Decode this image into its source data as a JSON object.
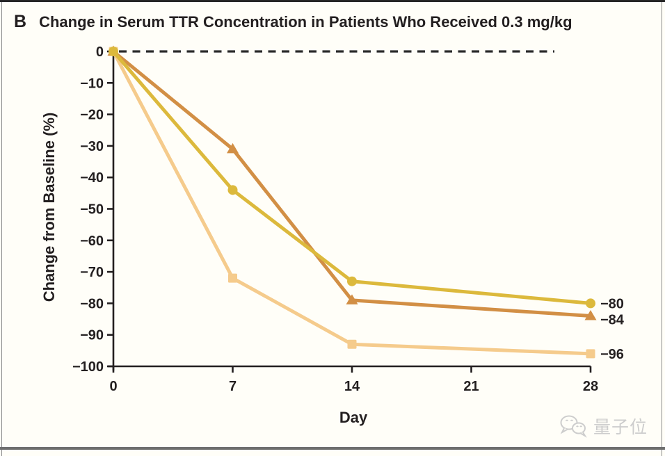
{
  "panel": {
    "label": "B",
    "title": "Change in Serum TTR Concentration in Patients Who Received 0.3 mg/kg"
  },
  "chart_data": {
    "type": "line",
    "title": "Change in Serum TTR Concentration in Patients Who Received 0.3 mg/kg",
    "xlabel": "Day",
    "ylabel": "Change from Baseline (%)",
    "xlim": [
      0,
      28
    ],
    "ylim": [
      -100,
      0
    ],
    "x_ticks": [
      0,
      7,
      14,
      21,
      28
    ],
    "x_tick_labels": [
      "0",
      "7",
      "14",
      "21",
      "28"
    ],
    "y_ticks": [
      0,
      -10,
      -20,
      -30,
      -40,
      -50,
      -60,
      -70,
      -80,
      -90,
      -100
    ],
    "y_tick_labels": [
      "0",
      "−10",
      "−20",
      "−30",
      "−40",
      "−50",
      "−60",
      "−70",
      "−80",
      "−90",
      "−100"
    ],
    "grid": false,
    "legend": "none",
    "baseline_dashed_at": 0,
    "axis_color": "#231f20",
    "baseline_color": "#2b2b2b",
    "x": [
      0,
      7,
      14,
      28
    ],
    "series": [
      {
        "name": "patient-square",
        "marker": "square",
        "color": "#f5cb8c",
        "values": [
          0,
          -72,
          -93,
          -96
        ],
        "end_label": "−96"
      },
      {
        "name": "patient-triangle",
        "marker": "triangle",
        "color": "#d28f45",
        "values": [
          0,
          -31,
          -79,
          -84
        ],
        "end_label": "−84"
      },
      {
        "name": "patient-circle",
        "marker": "circle",
        "color": "#dcb93c",
        "values": [
          0,
          -44,
          -73,
          -80
        ],
        "end_label": "−80"
      }
    ]
  },
  "watermark": {
    "icon": "wechat-chat-bubbles-icon",
    "text": "量子位"
  }
}
